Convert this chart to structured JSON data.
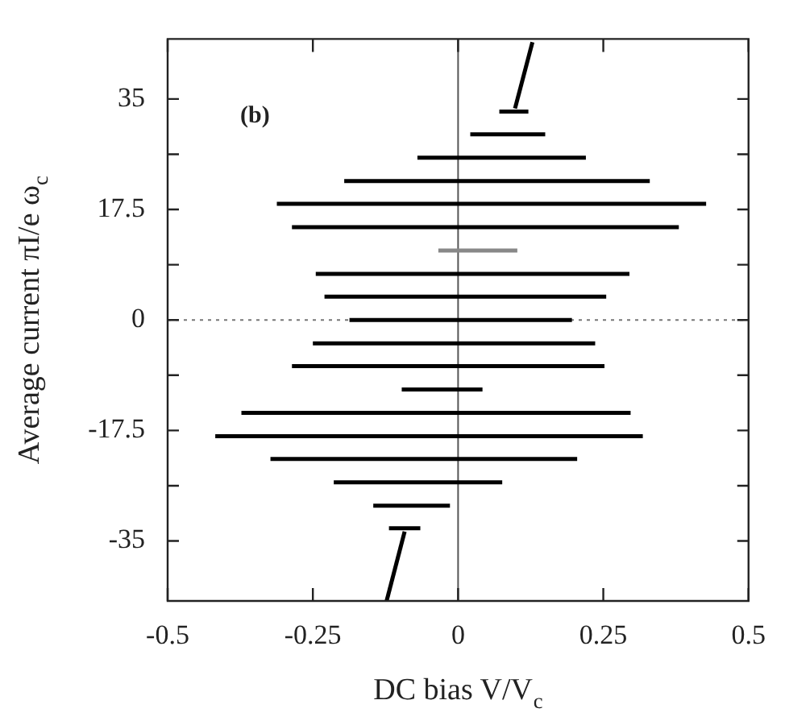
{
  "chart_data": {
    "type": "line",
    "xlabel": "DC bias V/V$_{c}$",
    "ylabel": "Average current πI/e ω$_{c}$",
    "annotations": [
      "(b)"
    ],
    "xlim": [
      -0.5,
      0.5
    ],
    "xticks": [
      -0.5,
      -0.25,
      0,
      0.25,
      0.5
    ],
    "ylim": [
      -44.5,
      44.5
    ],
    "yticks": [
      -35,
      {
        "value": -26.25,
        "label": null
      },
      -17.5,
      {
        "value": -8.75,
        "label": null
      },
      0,
      {
        "value": 8.75,
        "label": null
      },
      17.5,
      {
        "value": 26.25,
        "label": null
      },
      35
    ],
    "ref_lines": [
      {
        "axis": "x",
        "value": 0,
        "color": "#555555",
        "line_style": "solid"
      },
      {
        "axis": "y",
        "value": 0,
        "color": "#777777",
        "line_style": "dotted"
      }
    ],
    "marker": "none",
    "line_style": "solid",
    "grid": false,
    "legend": false,
    "series": [
      {
        "x": [
          0.098,
          0.128
        ],
        "values": [
          33.5,
          44
        ],
        "color": "#000000"
      },
      {
        "x": [
          0.071,
          0.121
        ],
        "values": [
          33,
          33
        ],
        "color": "#000000"
      },
      {
        "x": [
          0.021,
          0.15
        ],
        "values": [
          29.4,
          29.4
        ],
        "color": "#000000"
      },
      {
        "x": [
          -0.07,
          0.22
        ],
        "values": [
          25.7,
          25.7
        ],
        "color": "#000000"
      },
      {
        "x": [
          -0.196,
          0.33
        ],
        "values": [
          22,
          22
        ],
        "color": "#000000"
      },
      {
        "x": [
          -0.312,
          0.427
        ],
        "values": [
          18.4,
          18.4
        ],
        "color": "#000000"
      },
      {
        "x": [
          -0.286,
          0.38
        ],
        "values": [
          14.7,
          14.7
        ],
        "color": "#000000"
      },
      {
        "x": [
          -0.034,
          0.102
        ],
        "values": [
          11,
          11
        ],
        "color": "#888888"
      },
      {
        "x": [
          -0.245,
          0.295
        ],
        "values": [
          7.3,
          7.3
        ],
        "color": "#000000"
      },
      {
        "x": [
          -0.23,
          0.255
        ],
        "values": [
          3.7,
          3.7
        ],
        "color": "#000000"
      },
      {
        "x": [
          -0.187,
          0.196
        ],
        "values": [
          0,
          0
        ],
        "color": "#000000"
      },
      {
        "x": [
          -0.25,
          0.236
        ],
        "values": [
          -3.7,
          -3.7
        ],
        "color": "#000000"
      },
      {
        "x": [
          -0.286,
          0.252
        ],
        "values": [
          -7.3,
          -7.3
        ],
        "color": "#000000"
      },
      {
        "x": [
          -0.097,
          0.042
        ],
        "values": [
          -11,
          -11
        ],
        "color": "#000000"
      },
      {
        "x": [
          -0.373,
          0.297
        ],
        "values": [
          -14.7,
          -14.7
        ],
        "color": "#000000"
      },
      {
        "x": [
          -0.418,
          0.318
        ],
        "values": [
          -18.4,
          -18.4
        ],
        "color": "#000000"
      },
      {
        "x": [
          -0.323,
          0.205
        ],
        "values": [
          -22,
          -22
        ],
        "color": "#000000"
      },
      {
        "x": [
          -0.214,
          0.076
        ],
        "values": [
          -25.7,
          -25.7
        ],
        "color": "#000000"
      },
      {
        "x": [
          -0.146,
          -0.014
        ],
        "values": [
          -29.4,
          -29.4
        ],
        "color": "#000000"
      },
      {
        "x": [
          -0.119,
          -0.065
        ],
        "values": [
          -33,
          -33
        ],
        "color": "#000000"
      },
      {
        "x": [
          -0.092,
          -0.123
        ],
        "values": [
          -33.5,
          -44.5
        ],
        "color": "#000000"
      }
    ]
  }
}
